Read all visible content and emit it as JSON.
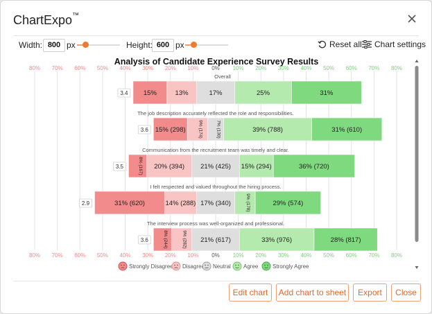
{
  "dialog": {
    "app_name": "ChartExpo",
    "trademark": "TM"
  },
  "controls": {
    "width_label": "Width:",
    "width_value": "800",
    "width_unit": "px",
    "width_fraction": 0.2,
    "height_label": "Height:",
    "height_value": "600",
    "height_unit": "px",
    "height_fraction": 0.2,
    "reset_label": "Reset all",
    "settings_label": "Chart settings"
  },
  "chart_data": {
    "type": "bar",
    "subtype": "diverging-stacked-bar",
    "title": "Analysis of Candidate Experience Survey Results",
    "axis_ticks": [
      "80%",
      "70%",
      "60%",
      "50%",
      "40%",
      "30%",
      "20%",
      "10%",
      "0%",
      "10%",
      "20%",
      "30%",
      "40%",
      "50%",
      "60%",
      "70%",
      "80%"
    ],
    "x_range": [
      -80,
      80
    ],
    "grid": true,
    "legend_position": "bottom",
    "legend": [
      "Strongly Disagree",
      "Disagree",
      "Neutral",
      "Agree",
      "Strongly Agree"
    ],
    "colors": {
      "strongly_disagree": "#f28b8b",
      "disagree": "#f9c4c4",
      "neutral": "#dedede",
      "agree": "#b5eaae",
      "strongly_agree": "#7fd97f",
      "negative_tick": "#f08b8b",
      "positive_tick": "#7fcf7f"
    },
    "rows": [
      {
        "label": "Overall",
        "score": "3.4",
        "values": [
          15,
          13,
          17,
          25,
          31
        ],
        "labels": [
          "15%",
          "13%",
          "17%",
          "25%",
          "31%"
        ]
      },
      {
        "label": "The job description accurately reflected the role and responsibilities.",
        "score": "3.6",
        "values": [
          15,
          9,
          7,
          39,
          31
        ],
        "labels": [
          "15% (298)",
          "9% (174)",
          "7% (130)",
          "39% (788)",
          "31% (610)"
        ]
      },
      {
        "label": "Communication from the recruitment team was timely and clear.",
        "score": "3.5",
        "values": [
          8,
          20,
          21,
          15,
          36
        ],
        "labels": [
          "8% (167)",
          "20% (394)",
          "21% (425)",
          "15% (294)",
          "36% (720)"
        ]
      },
      {
        "label": "I felt respected and valued throughout the hiring process.",
        "score": "2.9",
        "values": [
          31,
          14,
          17,
          9,
          29
        ],
        "labels": [
          "31% (620)",
          "14% (288)",
          "17% (340)",
          "9% (178)",
          "29% (574)"
        ]
      },
      {
        "label": "The interview process was well-organized and professional.",
        "score": "3.6",
        "values": [
          8,
          9,
          21,
          33,
          28
        ],
        "labels": [
          "8% (244)",
          "9% (282)",
          "21% (617)",
          "33% (976)",
          "28% (817)"
        ]
      }
    ]
  },
  "buttons": {
    "edit": "Edit chart",
    "add": "Add chart to sheet",
    "export": "Export",
    "close": "Close"
  }
}
